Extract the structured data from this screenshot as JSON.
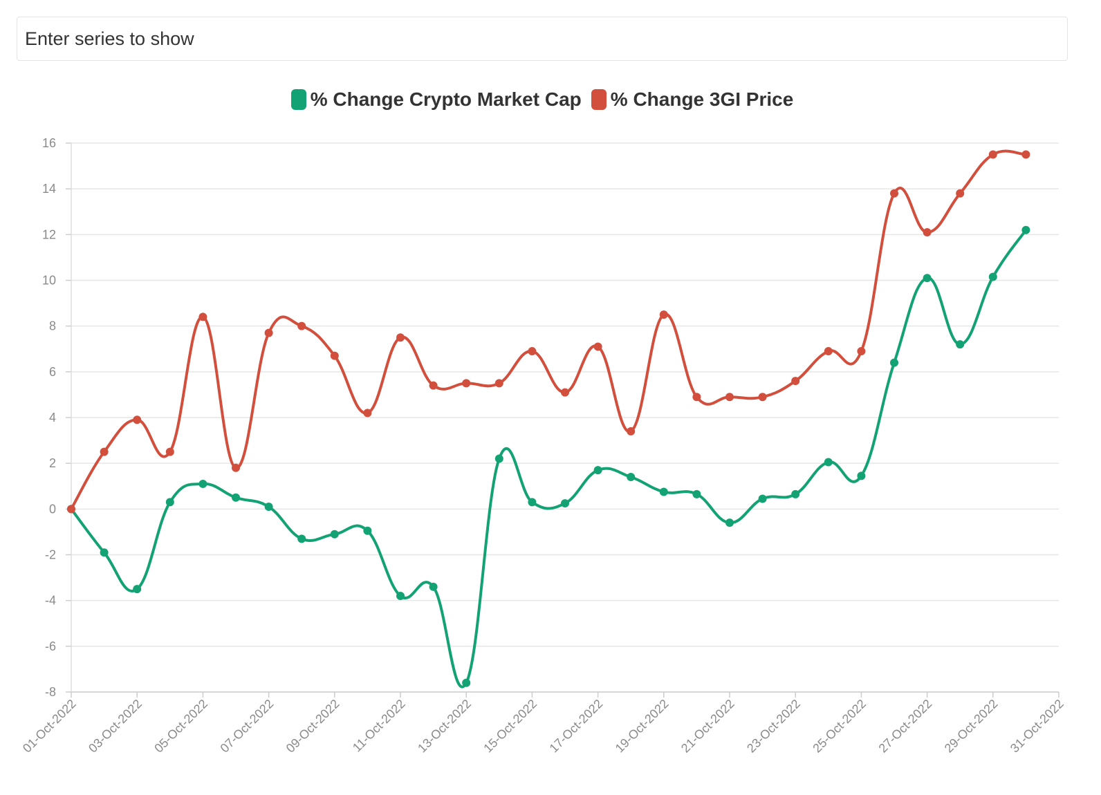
{
  "search": {
    "placeholder": "Enter series to show"
  },
  "legend": [
    {
      "label": "% Change Crypto Market Cap",
      "color": "#13a274"
    },
    {
      "label": "% Change 3GI Price",
      "color": "#d14f3c"
    }
  ],
  "chart_data": {
    "type": "line",
    "title": "",
    "xlabel": "",
    "ylabel": "",
    "ylim": [
      -8,
      16
    ],
    "yticks": [
      16,
      14,
      12,
      10,
      8,
      6,
      4,
      2,
      0,
      -2,
      -4,
      -6,
      -8
    ],
    "grid": true,
    "legend_position": "top-center",
    "x": [
      "01-Oct-2022",
      "02-Oct-2022",
      "03-Oct-2022",
      "04-Oct-2022",
      "05-Oct-2022",
      "06-Oct-2022",
      "07-Oct-2022",
      "08-Oct-2022",
      "09-Oct-2022",
      "10-Oct-2022",
      "11-Oct-2022",
      "12-Oct-2022",
      "13-Oct-2022",
      "14-Oct-2022",
      "15-Oct-2022",
      "16-Oct-2022",
      "17-Oct-2022",
      "18-Oct-2022",
      "19-Oct-2022",
      "20-Oct-2022",
      "21-Oct-2022",
      "22-Oct-2022",
      "23-Oct-2022",
      "24-Oct-2022",
      "25-Oct-2022",
      "26-Oct-2022",
      "27-Oct-2022",
      "28-Oct-2022",
      "29-Oct-2022",
      "30-Oct-2022"
    ],
    "xticks": [
      "01-Oct-2022",
      "03-Oct-2022",
      "05-Oct-2022",
      "07-Oct-2022",
      "09-Oct-2022",
      "11-Oct-2022",
      "13-Oct-2022",
      "15-Oct-2022",
      "17-Oct-2022",
      "19-Oct-2022",
      "21-Oct-2022",
      "23-Oct-2022",
      "25-Oct-2022",
      "27-Oct-2022",
      "29-Oct-2022",
      "31-Oct-2022"
    ],
    "series": [
      {
        "name": "% Change Crypto Market Cap",
        "color": "#13a274",
        "values": [
          0,
          -1.9,
          -3.5,
          0.3,
          1.1,
          0.5,
          0.1,
          -1.3,
          -1.1,
          -0.95,
          -3.8,
          -3.4,
          -7.6,
          2.2,
          0.3,
          0.25,
          1.7,
          1.4,
          0.75,
          0.65,
          -0.6,
          0.45,
          0.65,
          2.05,
          1.45,
          6.4,
          10.1,
          7.2,
          10.15,
          12.2
        ]
      },
      {
        "name": "% Change 3GI Price",
        "color": "#d14f3c",
        "values": [
          0,
          2.5,
          3.9,
          2.5,
          8.4,
          1.8,
          7.7,
          8.0,
          6.7,
          4.2,
          7.5,
          5.4,
          5.5,
          5.5,
          6.9,
          5.1,
          7.1,
          3.4,
          8.5,
          4.9,
          4.9,
          4.9,
          5.6,
          6.9,
          6.9,
          13.8,
          12.1,
          13.8,
          15.5,
          15.5
        ]
      }
    ]
  }
}
